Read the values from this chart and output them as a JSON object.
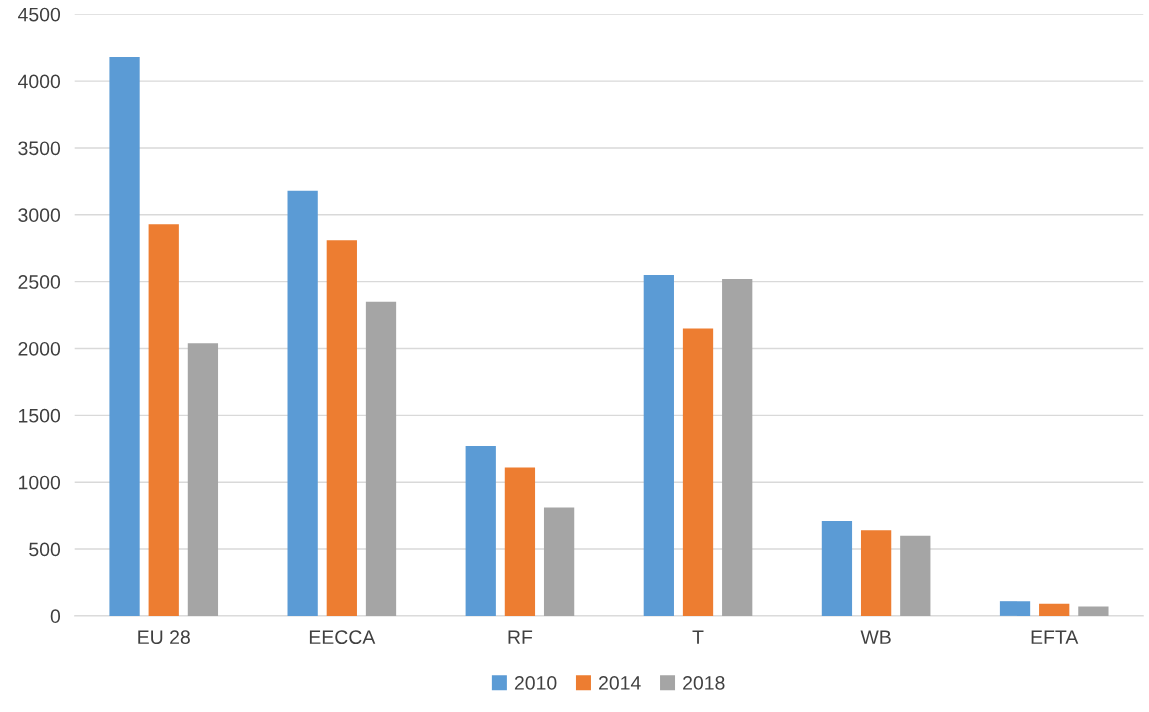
{
  "chart_data": {
    "type": "bar",
    "categories": [
      "EU 28",
      "EECCA",
      "RF",
      "T",
      "WB",
      "EFTA"
    ],
    "series": [
      {
        "name": "2010",
        "color": "#5b9bd5",
        "values": [
          4180,
          3180,
          1270,
          2550,
          710,
          110
        ]
      },
      {
        "name": "2014",
        "color": "#ed7d31",
        "values": [
          2930,
          2810,
          1110,
          2150,
          640,
          90
        ]
      },
      {
        "name": "2018",
        "color": "#a5a5a5",
        "values": [
          2040,
          2350,
          810,
          2520,
          600,
          70
        ]
      }
    ],
    "ylim": [
      0,
      4500
    ],
    "yticks": [
      0,
      500,
      1000,
      1500,
      2000,
      2500,
      3000,
      3500,
      4000,
      4500
    ],
    "grid": "y",
    "legend": "bottom"
  }
}
